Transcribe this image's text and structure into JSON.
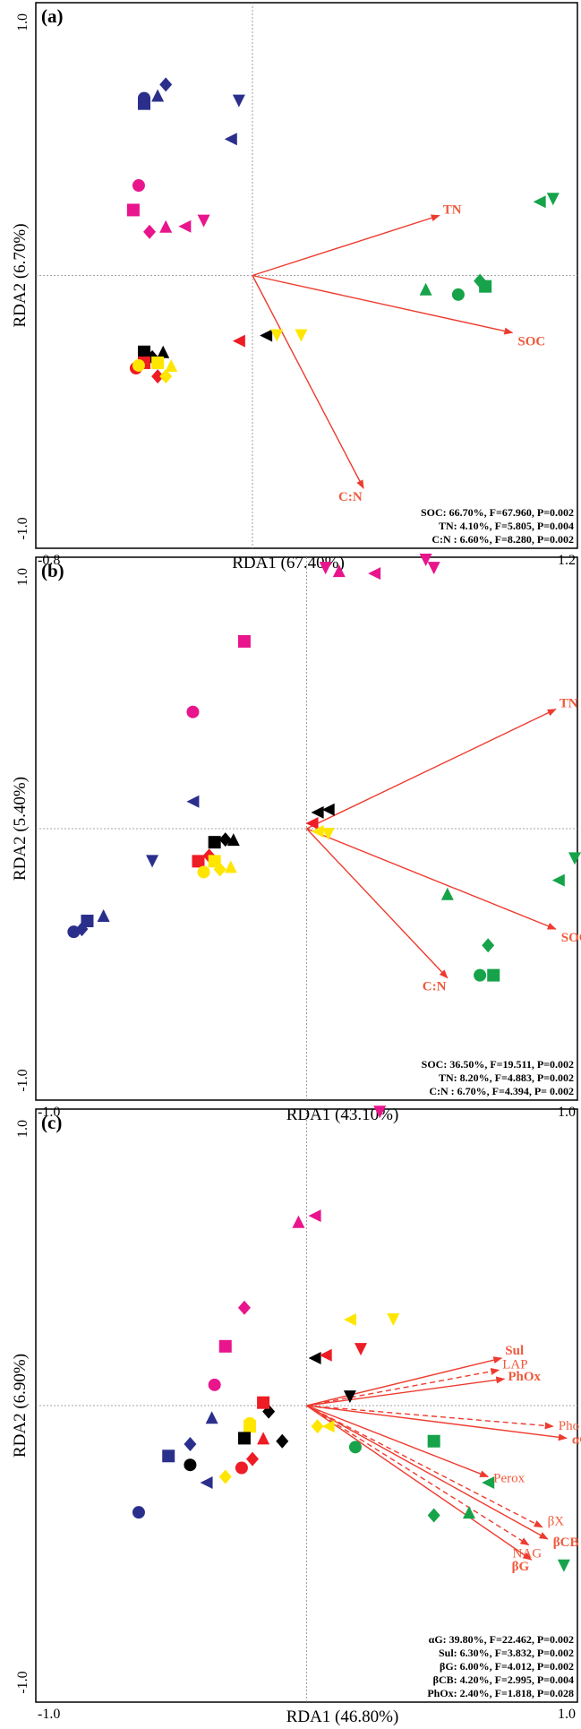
{
  "colors": {
    "blue": "#2b2f8c",
    "magenta": "#e8158c",
    "black": "#000000",
    "red": "#ee1c25",
    "yellow": "#ffe600",
    "green": "#16a34a",
    "arrow": "#ee3b2f"
  },
  "chart_data": [
    {
      "type": "scatter",
      "panel_label": "(a)",
      "xlabel": "RDA1 (67.40%)",
      "ylabel": "RDA2 (6.70%)",
      "x_ticks": [
        "-0.8",
        "1.2"
      ],
      "y_ticks": [
        "1.0",
        "-1.0"
      ],
      "xlim": [
        -0.8,
        1.2
      ],
      "ylim": [
        -1.0,
        1.0
      ],
      "grid": false,
      "vectors": [
        {
          "name": "TN",
          "x": 0.69,
          "y": 0.22,
          "style": "solid"
        },
        {
          "name": "SOC",
          "x": 0.96,
          "y": -0.21,
          "style": "solid"
        },
        {
          "name": "C:N",
          "x": 0.41,
          "y": -0.78,
          "style": "solid"
        }
      ],
      "stats": [
        "SOC: 66.70%, F=67.960, P=0.002",
        "TN:  4.10%, F=5.805, P=0.004",
        "C:N :  6.60%, F=8.280, P=0.002"
      ],
      "points": [
        {
          "color": "blue",
          "shape": "circle",
          "x": -0.4,
          "y": 0.65
        },
        {
          "color": "blue",
          "shape": "square",
          "x": -0.4,
          "y": 0.63
        },
        {
          "color": "blue",
          "shape": "diamond",
          "x": -0.32,
          "y": 0.7
        },
        {
          "color": "blue",
          "shape": "tri-up",
          "x": -0.35,
          "y": 0.66
        },
        {
          "color": "blue",
          "shape": "tri-down",
          "x": -0.05,
          "y": 0.64
        },
        {
          "color": "blue",
          "shape": "tri-left",
          "x": -0.08,
          "y": 0.5
        },
        {
          "color": "magenta",
          "shape": "circle",
          "x": -0.42,
          "y": 0.33
        },
        {
          "color": "magenta",
          "shape": "square",
          "x": -0.44,
          "y": 0.24
        },
        {
          "color": "magenta",
          "shape": "diamond",
          "x": -0.38,
          "y": 0.16
        },
        {
          "color": "magenta",
          "shape": "tri-up",
          "x": -0.32,
          "y": 0.18
        },
        {
          "color": "magenta",
          "shape": "tri-left",
          "x": -0.25,
          "y": 0.18
        },
        {
          "color": "magenta",
          "shape": "tri-down",
          "x": -0.18,
          "y": 0.2
        },
        {
          "color": "black",
          "shape": "square",
          "x": -0.4,
          "y": -0.28
        },
        {
          "color": "black",
          "shape": "tri-up",
          "x": -0.33,
          "y": -0.28
        },
        {
          "color": "black",
          "shape": "tri-left",
          "x": 0.05,
          "y": -0.22
        },
        {
          "color": "black",
          "shape": "diamond",
          "x": -0.37,
          "y": -0.3
        },
        {
          "color": "red",
          "shape": "circle",
          "x": -0.43,
          "y": -0.34
        },
        {
          "color": "red",
          "shape": "square",
          "x": -0.4,
          "y": -0.32
        },
        {
          "color": "red",
          "shape": "diamond",
          "x": -0.35,
          "y": -0.37
        },
        {
          "color": "red",
          "shape": "tri-left",
          "x": -0.05,
          "y": -0.24
        },
        {
          "color": "yellow",
          "shape": "circle",
          "x": -0.42,
          "y": -0.33
        },
        {
          "color": "yellow",
          "shape": "square",
          "x": -0.35,
          "y": -0.32
        },
        {
          "color": "yellow",
          "shape": "tri-up",
          "x": -0.3,
          "y": -0.33
        },
        {
          "color": "yellow",
          "shape": "diamond",
          "x": -0.32,
          "y": -0.37
        },
        {
          "color": "yellow",
          "shape": "tri-down",
          "x": 0.09,
          "y": -0.22
        },
        {
          "color": "yellow",
          "shape": "tri-down",
          "x": 0.18,
          "y": -0.22
        },
        {
          "color": "green",
          "shape": "circle",
          "x": 0.76,
          "y": -0.07
        },
        {
          "color": "green",
          "shape": "square",
          "x": 0.86,
          "y": -0.04
        },
        {
          "color": "green",
          "shape": "diamond",
          "x": 0.84,
          "y": -0.02
        },
        {
          "color": "green",
          "shape": "tri-up",
          "x": 0.64,
          "y": -0.05
        },
        {
          "color": "green",
          "shape": "tri-left",
          "x": 1.06,
          "y": 0.27
        },
        {
          "color": "green",
          "shape": "tri-down",
          "x": 1.11,
          "y": 0.28
        }
      ]
    },
    {
      "type": "scatter",
      "panel_label": "(b)",
      "xlabel": "RDA1 (43.10%)",
      "ylabel": "RDA2 (5.40%)",
      "x_ticks": [
        "-1.0",
        "1.0"
      ],
      "y_ticks": [
        "1.0",
        "-1.0"
      ],
      "xlim": [
        -1.0,
        1.0
      ],
      "ylim": [
        -1.0,
        1.0
      ],
      "grid": false,
      "vectors": [
        {
          "name": "TN",
          "x": 0.92,
          "y": 0.44,
          "style": "solid"
        },
        {
          "name": "SOC",
          "x": 0.92,
          "y": -0.37,
          "style": "solid"
        },
        {
          "name": "C:N",
          "x": 0.52,
          "y": -0.55,
          "style": "solid"
        }
      ],
      "stats": [
        "SOC: 36.50%, F=19.511, P=0.002",
        "TN: 8.20%, F=4.883, P=0.002",
        "C:N : 6.70%, F=4.394, P= 0.002"
      ],
      "points": [
        {
          "color": "magenta",
          "shape": "tri-down",
          "x": 0.07,
          "y": 0.96
        },
        {
          "color": "magenta",
          "shape": "tri-up",
          "x": 0.12,
          "y": 0.95
        },
        {
          "color": "magenta",
          "shape": "tri-left",
          "x": 0.25,
          "y": 0.94
        },
        {
          "color": "magenta",
          "shape": "tri-down",
          "x": 0.44,
          "y": 0.99
        },
        {
          "color": "magenta",
          "shape": "tri-down",
          "x": 0.47,
          "y": 0.96
        },
        {
          "color": "magenta",
          "shape": "square",
          "x": -0.23,
          "y": 0.69
        },
        {
          "color": "magenta",
          "shape": "circle",
          "x": -0.42,
          "y": 0.43
        },
        {
          "color": "blue",
          "shape": "tri-left",
          "x": -0.42,
          "y": 0.1
        },
        {
          "color": "blue",
          "shape": "tri-down",
          "x": -0.57,
          "y": -0.12
        },
        {
          "color": "blue",
          "shape": "circle",
          "x": -0.86,
          "y": -0.38
        },
        {
          "color": "blue",
          "shape": "diamond",
          "x": -0.83,
          "y": -0.37
        },
        {
          "color": "blue",
          "shape": "square",
          "x": -0.81,
          "y": -0.34
        },
        {
          "color": "blue",
          "shape": "tri-up",
          "x": -0.75,
          "y": -0.32
        },
        {
          "color": "black",
          "shape": "square",
          "x": -0.34,
          "y": -0.05
        },
        {
          "color": "black",
          "shape": "tri-up",
          "x": -0.27,
          "y": -0.04
        },
        {
          "color": "black",
          "shape": "diamond",
          "x": -0.3,
          "y": -0.04
        },
        {
          "color": "black",
          "shape": "tri-left",
          "x": 0.04,
          "y": 0.06
        },
        {
          "color": "black",
          "shape": "tri-left",
          "x": 0.08,
          "y": 0.07
        },
        {
          "color": "red",
          "shape": "square",
          "x": -0.4,
          "y": -0.12
        },
        {
          "color": "red",
          "shape": "diamond",
          "x": -0.36,
          "y": -0.1
        },
        {
          "color": "red",
          "shape": "tri-left",
          "x": 0.02,
          "y": 0.02
        },
        {
          "color": "yellow",
          "shape": "circle",
          "x": -0.38,
          "y": -0.16
        },
        {
          "color": "yellow",
          "shape": "square",
          "x": -0.34,
          "y": -0.12
        },
        {
          "color": "yellow",
          "shape": "tri-up",
          "x": -0.28,
          "y": -0.14
        },
        {
          "color": "yellow",
          "shape": "diamond",
          "x": -0.32,
          "y": -0.15
        },
        {
          "color": "yellow",
          "shape": "tri-left",
          "x": 0.04,
          "y": -0.01
        },
        {
          "color": "yellow",
          "shape": "tri-down",
          "x": 0.08,
          "y": -0.02
        },
        {
          "color": "green",
          "shape": "tri-up",
          "x": 0.52,
          "y": -0.24
        },
        {
          "color": "green",
          "shape": "diamond",
          "x": 0.67,
          "y": -0.43
        },
        {
          "color": "green",
          "shape": "circle",
          "x": 0.64,
          "y": -0.54
        },
        {
          "color": "green",
          "shape": "square",
          "x": 0.69,
          "y": -0.54
        },
        {
          "color": "green",
          "shape": "tri-left",
          "x": 0.93,
          "y": -0.19
        },
        {
          "color": "green",
          "shape": "tri-down",
          "x": 0.99,
          "y": -0.11
        }
      ]
    },
    {
      "type": "scatter",
      "panel_label": "(c)",
      "xlabel": "RDA1 (46.80%)",
      "ylabel": "RDA2 (6.90%)",
      "x_ticks": [
        "-1.0",
        "1.0"
      ],
      "y_ticks": [
        "1.0",
        "-1.0"
      ],
      "xlim": [
        -1.0,
        1.0
      ],
      "ylim": [
        -1.0,
        1.0
      ],
      "grid": false,
      "vectors": [
        {
          "name": "Sul",
          "x": 0.72,
          "y": 0.16,
          "style": "solid"
        },
        {
          "name": "LAP",
          "x": 0.71,
          "y": 0.12,
          "style": "dashed"
        },
        {
          "name": "PhOx",
          "x": 0.73,
          "y": 0.09,
          "style": "solid"
        },
        {
          "name": "Pho",
          "x": 0.91,
          "y": -0.07,
          "style": "dashed"
        },
        {
          "name": "αG",
          "x": 0.96,
          "y": -0.11,
          "style": "solid"
        },
        {
          "name": "Perox",
          "x": 0.67,
          "y": -0.24,
          "style": "solid"
        },
        {
          "name": "βX",
          "x": 0.87,
          "y": -0.41,
          "style": "dashed"
        },
        {
          "name": "βCB",
          "x": 0.89,
          "y": -0.45,
          "style": "solid"
        },
        {
          "name": "NAG",
          "x": 0.82,
          "y": -0.47,
          "style": "dashed"
        },
        {
          "name": "βG",
          "x": 0.83,
          "y": -0.52,
          "style": "solid"
        }
      ],
      "stats": [
        "αG: 39.80%, F=22.462, P=0.002",
        "Sul: 6.30%, F=3.832, P=0.002",
        "βG: 6.00%, F=4.012, P=0.002",
        "βCB: 4.20%, F=2.995, P=0.004",
        "PhOx: 2.40%, F=1.818, P=0.028"
      ],
      "points": [
        {
          "color": "magenta",
          "shape": "tri-down",
          "x": 0.27,
          "y": 0.99
        },
        {
          "color": "magenta",
          "shape": "tri-up",
          "x": -0.03,
          "y": 0.62
        },
        {
          "color": "magenta",
          "shape": "tri-left",
          "x": 0.03,
          "y": 0.64
        },
        {
          "color": "magenta",
          "shape": "diamond",
          "x": -0.23,
          "y": 0.33
        },
        {
          "color": "magenta",
          "shape": "square",
          "x": -0.3,
          "y": 0.2
        },
        {
          "color": "magenta",
          "shape": "circle",
          "x": -0.34,
          "y": 0.07
        },
        {
          "color": "yellow",
          "shape": "tri-left",
          "x": 0.16,
          "y": 0.29
        },
        {
          "color": "yellow",
          "shape": "tri-down",
          "x": 0.32,
          "y": 0.29
        },
        {
          "color": "yellow",
          "shape": "square",
          "x": -0.21,
          "y": -0.07
        },
        {
          "color": "yellow",
          "shape": "circle",
          "x": -0.21,
          "y": -0.06
        },
        {
          "color": "yellow",
          "shape": "diamond",
          "x": -0.3,
          "y": -0.24
        },
        {
          "color": "yellow",
          "shape": "diamond",
          "x": 0.04,
          "y": -0.07
        },
        {
          "color": "yellow",
          "shape": "tri-left",
          "x": 0.08,
          "y": -0.07
        },
        {
          "color": "black",
          "shape": "tri-left",
          "x": 0.03,
          "y": 0.16
        },
        {
          "color": "black",
          "shape": "tri-down",
          "x": 0.16,
          "y": 0.03
        },
        {
          "color": "black",
          "shape": "square",
          "x": -0.23,
          "y": -0.11
        },
        {
          "color": "black",
          "shape": "circle",
          "x": -0.43,
          "y": -0.2
        },
        {
          "color": "black",
          "shape": "diamond",
          "x": -0.09,
          "y": -0.12
        },
        {
          "color": "black",
          "shape": "diamond",
          "x": -0.14,
          "y": -0.02
        },
        {
          "color": "red",
          "shape": "tri-left",
          "x": 0.07,
          "y": 0.17
        },
        {
          "color": "red",
          "shape": "tri-down",
          "x": 0.2,
          "y": 0.19
        },
        {
          "color": "red",
          "shape": "square",
          "x": -0.16,
          "y": 0.01
        },
        {
          "color": "red",
          "shape": "tri-up",
          "x": -0.16,
          "y": -0.11
        },
        {
          "color": "red",
          "shape": "circle",
          "x": -0.24,
          "y": -0.21
        },
        {
          "color": "red",
          "shape": "diamond",
          "x": -0.2,
          "y": -0.18
        },
        {
          "color": "blue",
          "shape": "tri-up",
          "x": -0.35,
          "y": -0.04
        },
        {
          "color": "blue",
          "shape": "diamond",
          "x": -0.43,
          "y": -0.13
        },
        {
          "color": "blue",
          "shape": "square",
          "x": -0.51,
          "y": -0.17
        },
        {
          "color": "blue",
          "shape": "tri-left",
          "x": -0.37,
          "y": -0.26
        },
        {
          "color": "blue",
          "shape": "circle",
          "x": -0.62,
          "y": -0.36
        },
        {
          "color": "green",
          "shape": "circle",
          "x": 0.18,
          "y": -0.14
        },
        {
          "color": "green",
          "shape": "square",
          "x": 0.47,
          "y": -0.12
        },
        {
          "color": "green",
          "shape": "tri-left",
          "x": 0.67,
          "y": -0.26
        },
        {
          "color": "green",
          "shape": "diamond",
          "x": 0.47,
          "y": -0.37
        },
        {
          "color": "green",
          "shape": "tri-up",
          "x": 0.6,
          "y": -0.36
        },
        {
          "color": "green",
          "shape": "tri-down",
          "x": 0.95,
          "y": -0.54
        }
      ]
    }
  ]
}
